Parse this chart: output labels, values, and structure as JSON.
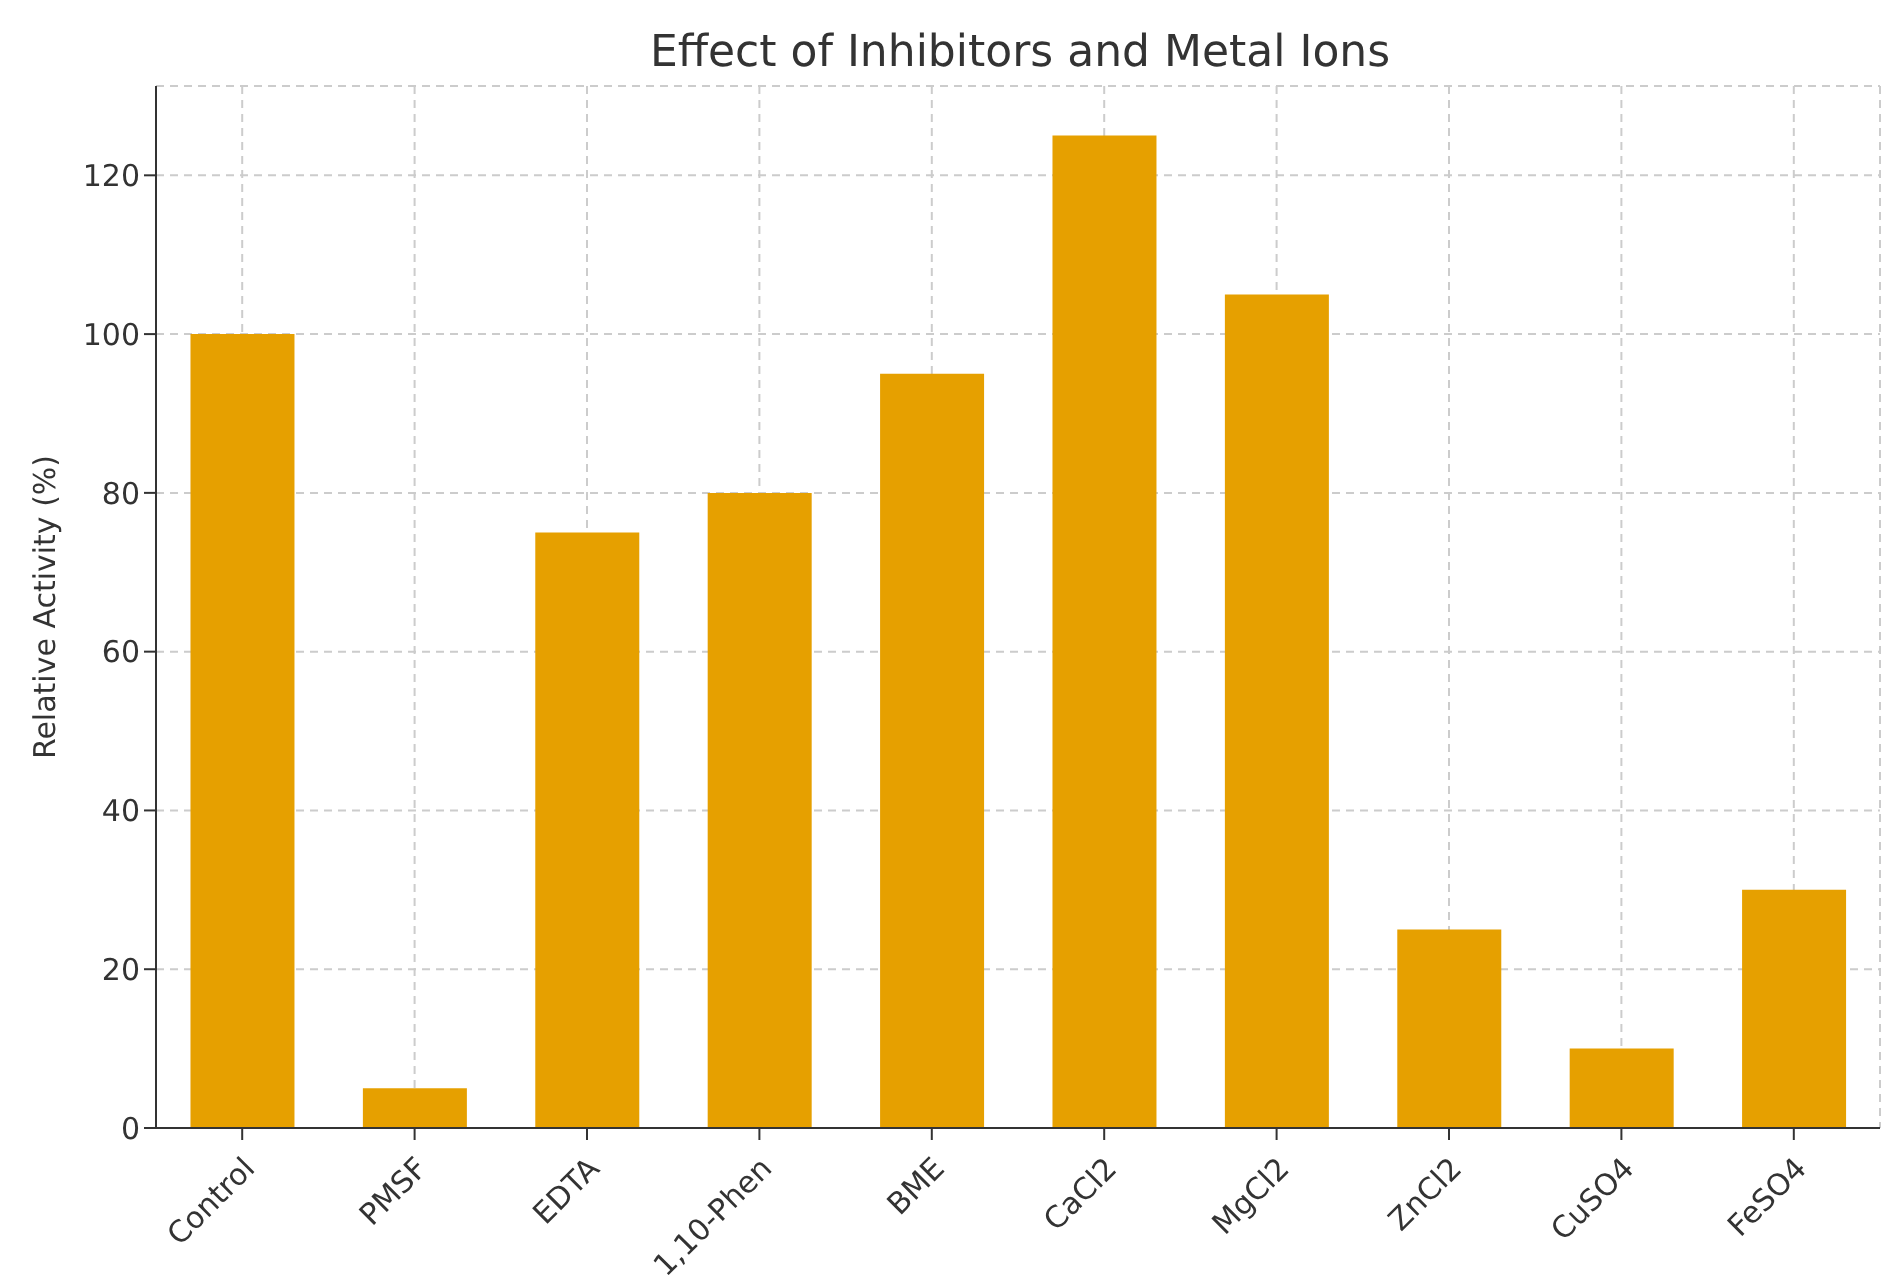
{
  "chart_data": {
    "type": "bar",
    "title": "Effect of Inhibitors and Metal Ions",
    "ylabel": "Relative Activity (%)",
    "categories": [
      "Control",
      "PMSF",
      "EDTA",
      "1,10-Phen",
      "BME",
      "CaCl2",
      "MgCl2",
      "ZnCl2",
      "CuSO4",
      "FeSO4"
    ],
    "values": [
      100,
      5,
      75,
      80,
      95,
      125,
      105,
      25,
      10,
      30
    ],
    "color": "#e6a000",
    "ylim": [
      0,
      131.25
    ],
    "yticks": [
      0,
      20,
      40,
      60,
      80,
      100,
      120
    ],
    "grid": true
  }
}
